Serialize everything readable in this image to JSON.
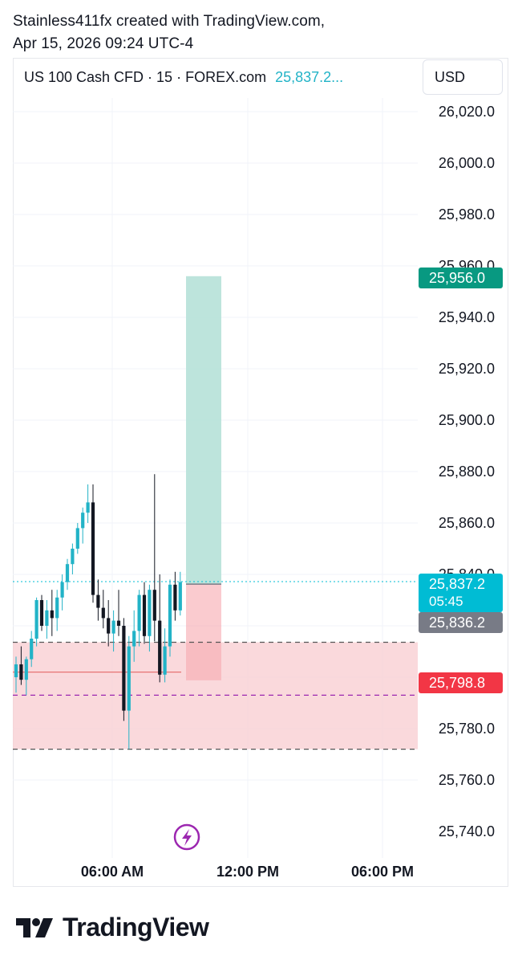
{
  "caption": {
    "line1": "Stainless411fx created with TradingView.com,",
    "line2": "Apr 15, 2026 09:24 UTC-4"
  },
  "header": {
    "symbol": "US 100 Cash CFD · 15 · FOREX.com",
    "price": "25,837.2...",
    "currency_button": "USD"
  },
  "axis": {
    "price_labels": [
      "26,020.0",
      "26,000.0",
      "25,980.0",
      "25,960.0",
      "25,940.0",
      "25,920.0",
      "25,900.0",
      "25,880.0",
      "25,860.0",
      "25,840.0",
      "25,780.0",
      "25,760.0",
      "25,740.0"
    ],
    "time_labels": [
      "06:00 AM",
      "12:00 PM",
      "06:00 PM"
    ]
  },
  "price_tags": {
    "target": {
      "text": "25,956.0",
      "color": "#089981"
    },
    "last": {
      "text": "25,837.2",
      "sub": "05:45",
      "color": "#00bcd4"
    },
    "prev": {
      "text": "25,836.2",
      "color": "#787b86"
    },
    "stop": {
      "text": "25,798.8",
      "color": "#f23645"
    }
  },
  "brand": {
    "logo_text": "TradingView"
  },
  "colors": {
    "up": "#22b3c7",
    "down": "#131722",
    "profit_zone": "#b2dfd6",
    "loss_zone": "#f9d0d3",
    "accent_purple": "#9c27b0"
  },
  "chart_data": {
    "type": "candlestick",
    "symbol": "US 100 Cash CFD",
    "timeframe": "15",
    "source": "FOREX.com",
    "ylim": [
      25772,
      26030
    ],
    "last_price": 25837.2,
    "bars": [
      {
        "o": 25800,
        "h": 25808,
        "l": 25794,
        "c": 25805
      },
      {
        "o": 25805,
        "h": 25812,
        "l": 25797,
        "c": 25799
      },
      {
        "o": 25799,
        "h": 25808,
        "l": 25793,
        "c": 25807
      },
      {
        "o": 25807,
        "h": 25818,
        "l": 25804,
        "c": 25815
      },
      {
        "o": 25815,
        "h": 25831,
        "l": 25812,
        "c": 25830
      },
      {
        "o": 25830,
        "h": 25832,
        "l": 25818,
        "c": 25820
      },
      {
        "o": 25820,
        "h": 25830,
        "l": 25815,
        "c": 25826
      },
      {
        "o": 25826,
        "h": 25834,
        "l": 25816,
        "c": 25823
      },
      {
        "o": 25823,
        "h": 25834,
        "l": 25818,
        "c": 25831
      },
      {
        "o": 25831,
        "h": 25840,
        "l": 25826,
        "c": 25837
      },
      {
        "o": 25837,
        "h": 25846,
        "l": 25834,
        "c": 25844
      },
      {
        "o": 25844,
        "h": 25852,
        "l": 25840,
        "c": 25850
      },
      {
        "o": 25850,
        "h": 25860,
        "l": 25848,
        "c": 25858
      },
      {
        "o": 25858,
        "h": 25866,
        "l": 25852,
        "c": 25864
      },
      {
        "o": 25864,
        "h": 25875,
        "l": 25860,
        "c": 25868
      },
      {
        "o": 25868,
        "h": 25875,
        "l": 25829,
        "c": 25832
      },
      {
        "o": 25832,
        "h": 25838,
        "l": 25822,
        "c": 25827
      },
      {
        "o": 25827,
        "h": 25834,
        "l": 25819,
        "c": 25823
      },
      {
        "o": 25823,
        "h": 25830,
        "l": 25812,
        "c": 25817
      },
      {
        "o": 25817,
        "h": 25826,
        "l": 25810,
        "c": 25822
      },
      {
        "o": 25822,
        "h": 25834,
        "l": 25816,
        "c": 25820
      },
      {
        "o": 25820,
        "h": 25823,
        "l": 25783,
        "c": 25787
      },
      {
        "o": 25787,
        "h": 25816,
        "l": 25772,
        "c": 25812
      },
      {
        "o": 25812,
        "h": 25826,
        "l": 25806,
        "c": 25818
      },
      {
        "o": 25818,
        "h": 25834,
        "l": 25812,
        "c": 25832
      },
      {
        "o": 25832,
        "h": 25837,
        "l": 25813,
        "c": 25816
      },
      {
        "o": 25816,
        "h": 25836,
        "l": 25810,
        "c": 25834
      },
      {
        "o": 25834,
        "h": 25879,
        "l": 25814,
        "c": 25822
      },
      {
        "o": 25822,
        "h": 25840,
        "l": 25798,
        "c": 25801
      },
      {
        "o": 25801,
        "h": 25819,
        "l": 25798,
        "c": 25812
      },
      {
        "o": 25812,
        "h": 25838,
        "l": 25808,
        "c": 25836
      },
      {
        "o": 25836,
        "h": 25841,
        "l": 25822,
        "c": 25826
      },
      {
        "o": 25826,
        "h": 25841,
        "l": 25824,
        "c": 25837
      }
    ],
    "position": {
      "entry": 25836.2,
      "target": 25956.0,
      "stop": 25798.8
    },
    "levels": [
      {
        "price": 25813.6,
        "style": "dashed",
        "color": "#555555"
      },
      {
        "price": 25793.0,
        "style": "dashed",
        "color": "#9c27b0"
      },
      {
        "price": 25772.0,
        "style": "dashed",
        "color": "#555555"
      },
      {
        "price": 25802.0,
        "style": "solid",
        "color": "#e57373"
      }
    ],
    "zone": {
      "from": 25772.0,
      "to": 25813.6
    }
  }
}
